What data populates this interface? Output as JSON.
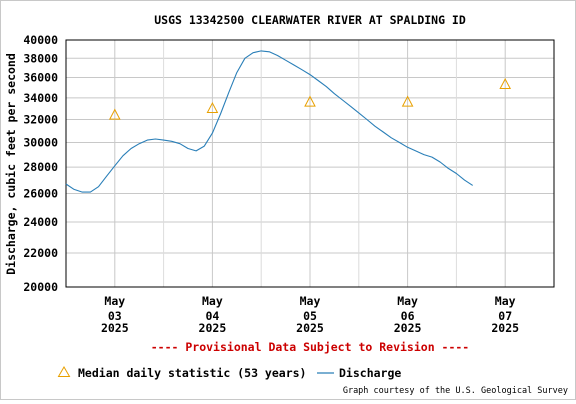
{
  "chart_data": {
    "type": "line",
    "title": "USGS 13342500 CLEARWATER RIVER AT SPALDING ID",
    "ylabel": "Discharge, cubic feet per second",
    "xlabel": "",
    "y_scale": "log",
    "ylim": [
      20000,
      40000
    ],
    "y_ticks": [
      20000,
      22000,
      24000,
      26000,
      28000,
      30000,
      32000,
      34000,
      36000,
      38000,
      40000
    ],
    "y_tick_labels": [
      "20000",
      "22000",
      "24000",
      "26000",
      "28000",
      "30000",
      "32000",
      "34000",
      "36000",
      "38000",
      "40000"
    ],
    "xlim": [
      "2025-05-02 12:00",
      "2025-05-07 12:00"
    ],
    "x_ticks": [
      {
        "date": "2025-05-03",
        "month": "May",
        "day": "03",
        "year": "2025"
      },
      {
        "date": "2025-05-04",
        "month": "May",
        "day": "04",
        "year": "2025"
      },
      {
        "date": "2025-05-05",
        "month": "May",
        "day": "05",
        "year": "2025"
      },
      {
        "date": "2025-05-06",
        "month": "May",
        "day": "06",
        "year": "2025"
      },
      {
        "date": "2025-05-07",
        "month": "May",
        "day": "07",
        "year": "2025"
      }
    ],
    "grid": true,
    "provisional_notice": "---- Provisional Data Subject to Revision ----",
    "series": [
      {
        "name": "Discharge",
        "color": "#2a7fb8",
        "points": [
          [
            "2025-05-02 12:00",
            26700
          ],
          [
            "2025-05-02 14:00",
            26300
          ],
          [
            "2025-05-02 16:00",
            26100
          ],
          [
            "2025-05-02 18:00",
            26100
          ],
          [
            "2025-05-02 20:00",
            26500
          ],
          [
            "2025-05-02 22:00",
            27300
          ],
          [
            "2025-05-03 00:00",
            28100
          ],
          [
            "2025-05-03 02:00",
            28900
          ],
          [
            "2025-05-03 04:00",
            29500
          ],
          [
            "2025-05-03 06:00",
            29900
          ],
          [
            "2025-05-03 08:00",
            30200
          ],
          [
            "2025-05-03 10:00",
            30300
          ],
          [
            "2025-05-03 12:00",
            30200
          ],
          [
            "2025-05-03 14:00",
            30100
          ],
          [
            "2025-05-03 16:00",
            29900
          ],
          [
            "2025-05-03 18:00",
            29500
          ],
          [
            "2025-05-03 20:00",
            29300
          ],
          [
            "2025-05-03 22:00",
            29700
          ],
          [
            "2025-05-04 00:00",
            30800
          ],
          [
            "2025-05-04 02:00",
            32500
          ],
          [
            "2025-05-04 04:00",
            34500
          ],
          [
            "2025-05-04 06:00",
            36500
          ],
          [
            "2025-05-04 08:00",
            38000
          ],
          [
            "2025-05-04 10:00",
            38600
          ],
          [
            "2025-05-04 12:00",
            38800
          ],
          [
            "2025-05-04 14:00",
            38700
          ],
          [
            "2025-05-04 16:00",
            38300
          ],
          [
            "2025-05-04 18:00",
            37800
          ],
          [
            "2025-05-04 20:00",
            37300
          ],
          [
            "2025-05-04 22:00",
            36800
          ],
          [
            "2025-05-05 00:00",
            36300
          ],
          [
            "2025-05-05 02:00",
            35700
          ],
          [
            "2025-05-05 04:00",
            35100
          ],
          [
            "2025-05-05 06:00",
            34400
          ],
          [
            "2025-05-05 08:00",
            33800
          ],
          [
            "2025-05-05 10:00",
            33200
          ],
          [
            "2025-05-05 12:00",
            32600
          ],
          [
            "2025-05-05 14:00",
            32000
          ],
          [
            "2025-05-05 16:00",
            31400
          ],
          [
            "2025-05-05 18:00",
            30900
          ],
          [
            "2025-05-05 20:00",
            30400
          ],
          [
            "2025-05-05 22:00",
            30000
          ],
          [
            "2025-05-06 00:00",
            29600
          ],
          [
            "2025-05-06 02:00",
            29300
          ],
          [
            "2025-05-06 04:00",
            29000
          ],
          [
            "2025-05-06 06:00",
            28800
          ],
          [
            "2025-05-06 08:00",
            28400
          ],
          [
            "2025-05-06 10:00",
            27900
          ],
          [
            "2025-05-06 12:00",
            27500
          ],
          [
            "2025-05-06 14:00",
            27000
          ],
          [
            "2025-05-06 16:00",
            26600
          ]
        ]
      },
      {
        "name": "Median daily statistic (53 years)",
        "color": "#e8a000",
        "marker": "triangle",
        "points": [
          [
            "2025-05-03 00:00",
            32400
          ],
          [
            "2025-05-04 00:00",
            33000
          ],
          [
            "2025-05-05 00:00",
            33600
          ],
          [
            "2025-05-06 00:00",
            33600
          ],
          [
            "2025-05-07 00:00",
            35300
          ]
        ]
      }
    ],
    "legend": {
      "placement": "bottom",
      "items": [
        {
          "label": "Median daily statistic (53 years)",
          "marker": "triangle",
          "color": "#e8a000"
        },
        {
          "label": "Discharge",
          "marker": "line",
          "color": "#2a7fb8"
        }
      ]
    },
    "credit": "Graph courtesy of the U.S. Geological Survey"
  }
}
